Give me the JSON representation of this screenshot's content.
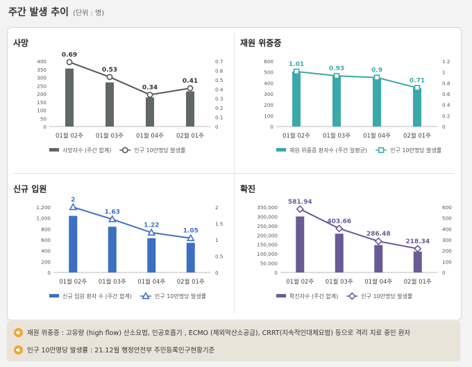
{
  "header": {
    "title": "주간 발생 추이",
    "unit": "(단위 : 명)"
  },
  "colors": {
    "death": "#5f6866",
    "severe": "#3aa9a9",
    "admission": "#3d6fc4",
    "confirmed": "#6c5a96",
    "line": "#555555",
    "linePoint": "#ffffff"
  },
  "panels": [
    {
      "id": "death",
      "title": "사망",
      "color": "#5f6866",
      "marker": "circle",
      "chart_data": {
        "type": "bar",
        "categories": [
          "01월 02주",
          "01월 03주",
          "01월 04주",
          "02월 01주"
        ],
        "series": [
          {
            "name": "사망자수 (주간 합계)",
            "type": "bar",
            "values": [
              355,
              270,
              178,
              215
            ]
          },
          {
            "name": "인구 10만명당 발생률",
            "type": "line",
            "values": [
              0.69,
              0.53,
              0.34,
              0.41
            ]
          }
        ],
        "ylim": [
          0,
          400
        ],
        "y2lim": [
          0,
          0.7
        ],
        "yticks": [
          "0",
          "50",
          "100",
          "150",
          "200",
          "250",
          "300",
          "350",
          "400"
        ],
        "y2ticks": [
          "0",
          "0.1",
          "0.2",
          "0.3",
          "0.4",
          "0.5",
          "0.6",
          "0.7"
        ],
        "line_labels": [
          "0.69",
          "0.53",
          "0.34",
          "0.41"
        ]
      }
    },
    {
      "id": "severe",
      "title": "재원 위중증",
      "color": "#3aa9a9",
      "marker": "square",
      "chart_data": {
        "type": "bar",
        "categories": [
          "01월 02주",
          "01월 03주",
          "01월 04주",
          "02월 01주"
        ],
        "series": [
          {
            "name": "재원 위중증 환자수 (주간 일평균)",
            "type": "bar",
            "values": [
              505,
              470,
              445,
              355
            ]
          },
          {
            "name": "인구 10만명당 발생률",
            "type": "line",
            "values": [
              1.01,
              0.93,
              0.9,
              0.71
            ]
          }
        ],
        "ylim": [
          0,
          600
        ],
        "y2lim": [
          0,
          1.2
        ],
        "yticks": [
          "0",
          "100",
          "200",
          "300",
          "400",
          "500",
          "600"
        ],
        "y2ticks": [
          "0",
          "0.2",
          "0.4",
          "0.6",
          "0.8",
          "1",
          "1.2"
        ],
        "line_labels": [
          "1.01",
          "0.93",
          "0.9",
          "0.71"
        ]
      }
    },
    {
      "id": "admission",
      "title": "신규 입원",
      "color": "#3d6fc4",
      "marker": "triangle",
      "chart_data": {
        "type": "bar",
        "categories": [
          "01월 02주",
          "01월 03주",
          "01월 04주",
          "02월 01주"
        ],
        "series": [
          {
            "name": "신규 입원 환자 수 (주간 합계)",
            "type": "bar",
            "values": [
              1040,
              840,
              630,
              545
            ]
          },
          {
            "name": "인구 10만명당 발생률",
            "type": "line",
            "values": [
              2,
              1.63,
              1.22,
              1.05
            ]
          }
        ],
        "ylim": [
          0,
          1200
        ],
        "y2lim": [
          0,
          2
        ],
        "yticks": [
          "0",
          "200",
          "400",
          "600",
          "800",
          "1,000",
          "1,200"
        ],
        "y2ticks": [
          "0",
          "0.5",
          "1",
          "1.5",
          "2"
        ],
        "line_labels": [
          "2",
          "1.63",
          "1.22",
          "1.05"
        ]
      }
    },
    {
      "id": "confirmed",
      "title": "확진",
      "color": "#6c5a96",
      "marker": "diamond",
      "chart_data": {
        "type": "bar",
        "categories": [
          "01월 02주",
          "01월 03주",
          "01월 04주",
          "02월 01주"
        ],
        "series": [
          {
            "name": "확진자수 (주간 합계)",
            "type": "bar",
            "values": [
              300000,
              208000,
              147000,
              112000
            ]
          },
          {
            "name": "인구 10만명당 발생률",
            "type": "line",
            "values": [
              581.94,
              403.66,
              286.48,
              218.34
            ]
          }
        ],
        "ylim": [
          0,
          350000
        ],
        "y2lim": [
          0,
          600
        ],
        "yticks": [
          "0",
          "50,000",
          "100,000",
          "150,000",
          "200,000",
          "250,000",
          "300,000",
          "350,000"
        ],
        "y2ticks": [
          "0",
          "100",
          "200",
          "300",
          "400",
          "500",
          "600"
        ],
        "line_labels": [
          "581.94",
          "403.66",
          "286.48",
          "218.34"
        ]
      }
    }
  ],
  "notes": [
    {
      "icon": "speaker-icon",
      "text": "재원 위중증 : 고유량 (high flow) 산소요법, 인공호흡기 , ECMO (체외막산소공급), CRRT(지속적인대체요법) 등으로 격리 치료 중인 환자"
    },
    {
      "icon": "speaker-icon",
      "text": "인구 10만명당 발생률 : 21.12월 행정안전부 주민등록인구현황기준"
    }
  ]
}
